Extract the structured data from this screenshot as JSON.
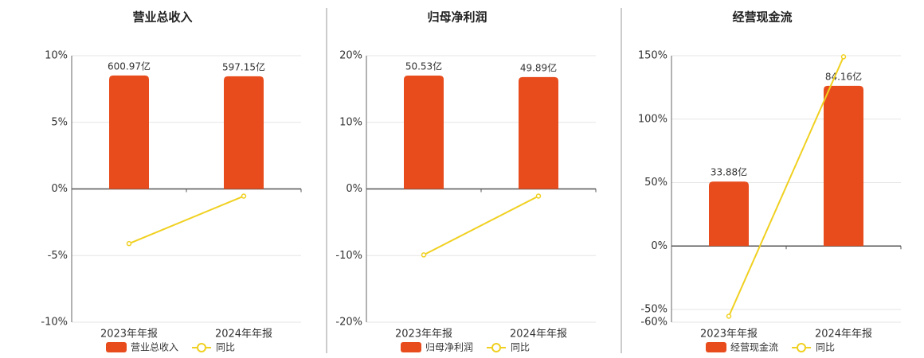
{
  "chart_data": [
    {
      "type": "bar",
      "title": "营业总收入",
      "categories": [
        "2023年年报",
        "2024年年报"
      ],
      "series": [
        {
          "name": "营业总收入",
          "type": "bar",
          "axis": "y2",
          "color": "#e84c1c",
          "values": [
            600.97,
            597.15
          ],
          "value_labels": [
            "600.97亿",
            "597.15亿"
          ]
        },
        {
          "name": "同比",
          "type": "line",
          "color": "#f0d020",
          "values": [
            -4.1,
            -0.54
          ]
        }
      ],
      "ylim": [
        -10,
        10
      ],
      "yticks": [
        {
          "value": 10,
          "label": "10%"
        },
        {
          "value": 5,
          "label": "5%"
        },
        {
          "value": 0,
          "label": "0%"
        },
        {
          "value": -5,
          "label": "-5%"
        },
        {
          "value": -10,
          "label": "-10%"
        }
      ],
      "y2lim": [
        -706,
        706
      ],
      "grid": true
    },
    {
      "type": "bar",
      "title": "归母净利润",
      "categories": [
        "2023年年报",
        "2024年年报"
      ],
      "series": [
        {
          "name": "归母净利润",
          "type": "bar",
          "axis": "y2",
          "color": "#e84c1c",
          "values": [
            50.53,
            49.89
          ],
          "value_labels": [
            "50.53亿",
            "49.89亿"
          ]
        },
        {
          "name": "同比",
          "type": "line",
          "color": "#f0d020",
          "values": [
            -9.9,
            -1.07
          ]
        }
      ],
      "ylim": [
        -20,
        20
      ],
      "yticks": [
        {
          "value": 20,
          "label": "20%"
        },
        {
          "value": 10,
          "label": "10%"
        },
        {
          "value": 0,
          "label": "0%"
        },
        {
          "value": -10,
          "label": "-10%"
        },
        {
          "value": -20,
          "label": "-20%"
        }
      ],
      "y2lim": [
        -59.4,
        59.4
      ],
      "grid": true
    },
    {
      "type": "bar",
      "title": "经营现金流",
      "categories": [
        "2023年年报",
        "2024年年报"
      ],
      "series": [
        {
          "name": "经营现金流",
          "type": "bar",
          "axis": "y2",
          "color": "#e84c1c",
          "values": [
            33.88,
            84.16
          ],
          "value_labels": [
            "33.88亿",
            "84.16亿"
          ]
        },
        {
          "name": "同比",
          "type": "line",
          "color": "#f0d020",
          "values": [
            -55.3,
            149.1
          ]
        }
      ],
      "ylim": [
        -60,
        150
      ],
      "yticks": [
        {
          "value": 150,
          "label": "150%"
        },
        {
          "value": 100,
          "label": "100%"
        },
        {
          "value": 50,
          "label": "50%"
        },
        {
          "value": 0,
          "label": "0%"
        },
        {
          "value": -50,
          "label": "-50%"
        },
        {
          "value": -60,
          "label": "-60%"
        }
      ],
      "y2lim": [
        -40,
        100
      ],
      "grid": true
    }
  ]
}
